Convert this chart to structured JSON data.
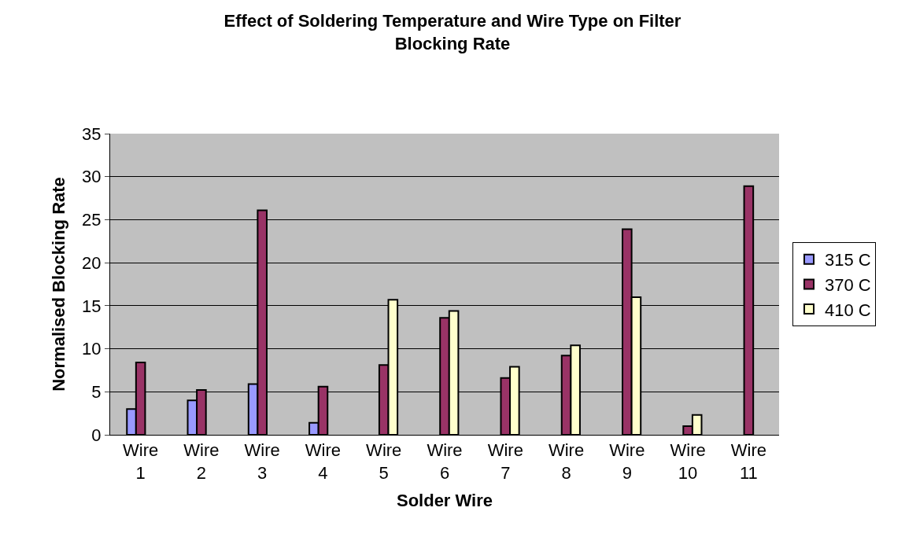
{
  "chart_data": {
    "type": "bar",
    "title": "Effect of Soldering Temperature and Wire Type on Filter Blocking Rate",
    "xlabel": "Solder Wire",
    "ylabel": "Normalised Blocking Rate",
    "categories": [
      "Wire 1",
      "Wire 2",
      "Wire 3",
      "Wire 4",
      "Wire 5",
      "Wire 6",
      "Wire 7",
      "Wire 8",
      "Wire 9",
      "Wire 10",
      "Wire 11"
    ],
    "series": [
      {
        "name": "315 C",
        "color": "#9999ff",
        "values": [
          3.0,
          4.0,
          5.9,
          1.4,
          null,
          null,
          null,
          null,
          null,
          null,
          null
        ]
      },
      {
        "name": "370 C",
        "color": "#993366",
        "values": [
          8.4,
          5.2,
          26.1,
          5.6,
          8.1,
          13.6,
          6.6,
          9.2,
          23.9,
          1.0,
          28.9
        ]
      },
      {
        "name": "410 C",
        "color": "#ffffcc",
        "values": [
          null,
          null,
          null,
          null,
          15.7,
          14.4,
          7.9,
          10.4,
          16.0,
          2.3,
          null
        ]
      }
    ],
    "ylim": [
      0,
      35
    ],
    "yticks": [
      0,
      5,
      10,
      15,
      20,
      25,
      30,
      35
    ],
    "grid": "y",
    "legend": "right"
  }
}
